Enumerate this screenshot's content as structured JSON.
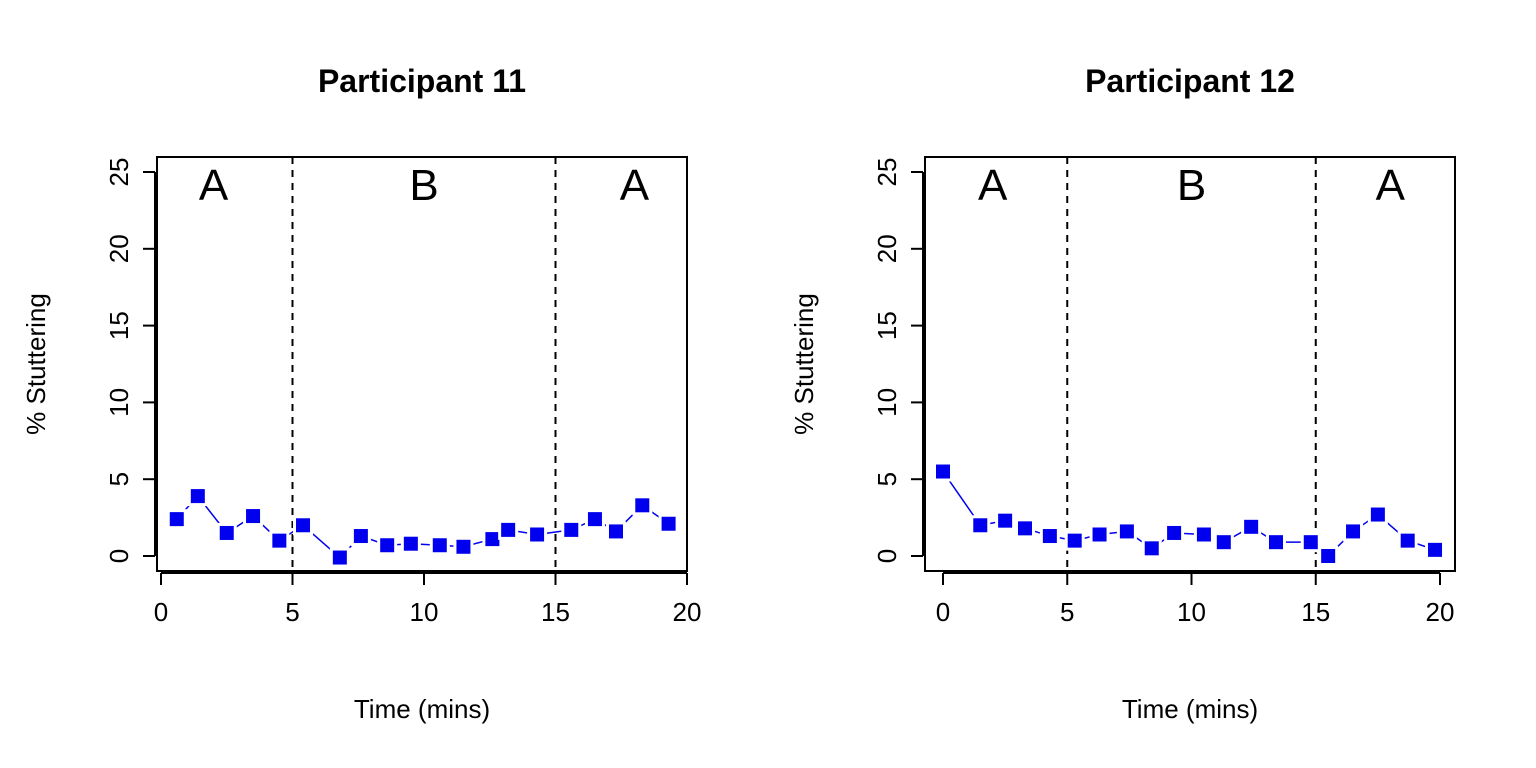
{
  "chart_data": [
    {
      "type": "scatter",
      "title": "Participant 11",
      "xlabel": "Time (mins)",
      "ylabel": "% Stuttering",
      "xlim": [
        0,
        20
      ],
      "ylim": [
        0,
        25
      ],
      "xticks": [
        "0",
        "5",
        "10",
        "15",
        "20"
      ],
      "yticks": [
        "0",
        "5",
        "10",
        "15",
        "20",
        "25"
      ],
      "phase_boundaries": [
        5,
        15
      ],
      "phases": [
        {
          "label": "A",
          "x": 2
        },
        {
          "label": "B",
          "x": 10
        },
        {
          "label": "A",
          "x": 18
        }
      ],
      "marker_color": "#0000ee",
      "series": [
        {
          "x": [
            0.6,
            1.4,
            2.5,
            3.5,
            4.5,
            5.4,
            6.8,
            7.6,
            8.6,
            9.5,
            10.6,
            11.5,
            12.6,
            13.2,
            14.3,
            15.6,
            16.5,
            17.3,
            18.3,
            19.3
          ],
          "y": [
            2.4,
            3.9,
            1.5,
            2.6,
            1.0,
            2.0,
            -0.1,
            1.3,
            0.7,
            0.8,
            0.7,
            0.6,
            1.1,
            1.7,
            1.4,
            1.7,
            2.4,
            1.6,
            3.3,
            2.1
          ]
        }
      ]
    },
    {
      "type": "scatter",
      "title": "Participant 12",
      "xlabel": "Time (mins)",
      "ylabel": "% Stuttering",
      "xlim": [
        0,
        20
      ],
      "ylim": [
        0,
        25
      ],
      "xticks": [
        "0",
        "5",
        "10",
        "15",
        "20"
      ],
      "yticks": [
        "0",
        "5",
        "10",
        "15",
        "20",
        "25"
      ],
      "phase_boundaries": [
        5,
        15
      ],
      "phases": [
        {
          "label": "A",
          "x": 2
        },
        {
          "label": "B",
          "x": 10
        },
        {
          "label": "A",
          "x": 18
        }
      ],
      "marker_color": "#0000ee",
      "series": [
        {
          "x": [
            0.0,
            1.5,
            2.5,
            3.3,
            4.3,
            5.3,
            6.3,
            7.4,
            8.4,
            9.3,
            10.5,
            11.3,
            12.4,
            13.4,
            14.8,
            15.5,
            16.5,
            17.5,
            18.7,
            19.8
          ],
          "y": [
            5.5,
            2.0,
            2.3,
            1.8,
            1.3,
            1.0,
            1.4,
            1.6,
            0.5,
            1.5,
            1.4,
            0.9,
            1.9,
            0.9,
            0.9,
            0.0,
            1.6,
            2.7,
            1.0,
            0.4
          ]
        }
      ]
    }
  ]
}
